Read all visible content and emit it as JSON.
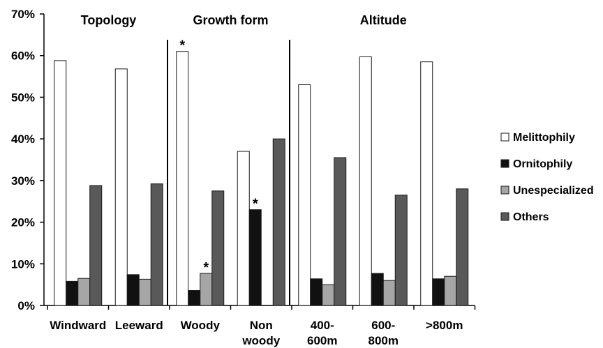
{
  "chart_data": {
    "type": "bar",
    "categories": [
      "Windward",
      "Leeward",
      "Woody",
      "Non woody",
      "400-600m",
      "600-800m",
      ">800m"
    ],
    "category_label_lines": [
      [
        "Windward"
      ],
      [
        "Leeward"
      ],
      [
        "Woody"
      ],
      [
        "Non",
        "woody"
      ],
      [
        "400-",
        "600m"
      ],
      [
        "600-",
        "800m"
      ],
      [
        ">800m"
      ]
    ],
    "series": [
      {
        "name": "Melittophily",
        "color": "#ffffff",
        "values": [
          58.8,
          56.8,
          61.0,
          37.0,
          53.0,
          59.7,
          58.5
        ]
      },
      {
        "name": "Ornitophily",
        "color": "#111111",
        "values": [
          5.8,
          7.4,
          3.6,
          23.0,
          6.4,
          7.7,
          6.4
        ]
      },
      {
        "name": "Unespecialized",
        "color": "#a6a6a6",
        "values": [
          6.5,
          6.3,
          7.7,
          0,
          5.0,
          6.0,
          7.0
        ]
      },
      {
        "name": "Others",
        "color": "#595959",
        "values": [
          28.8,
          29.2,
          27.5,
          40.0,
          35.5,
          26.5,
          28.0
        ]
      }
    ],
    "ylim": [
      0,
      70
    ],
    "yticks": [
      "0%",
      "10%",
      "20%",
      "30%",
      "40%",
      "50%",
      "60%",
      "70%"
    ],
    "groups": [
      {
        "label": "Topology",
        "from": 0,
        "to": 1
      },
      {
        "label": "Growth form",
        "from": 2,
        "to": 3
      },
      {
        "label": "Altitude",
        "from": 4,
        "to": 6
      }
    ],
    "annotations": [
      {
        "text": "*",
        "category": 2,
        "series": 0
      },
      {
        "text": "*",
        "category": 2,
        "series": 2
      },
      {
        "text": "*",
        "category": 3,
        "series": 1
      }
    ],
    "legend_position": "right",
    "grid": false
  }
}
